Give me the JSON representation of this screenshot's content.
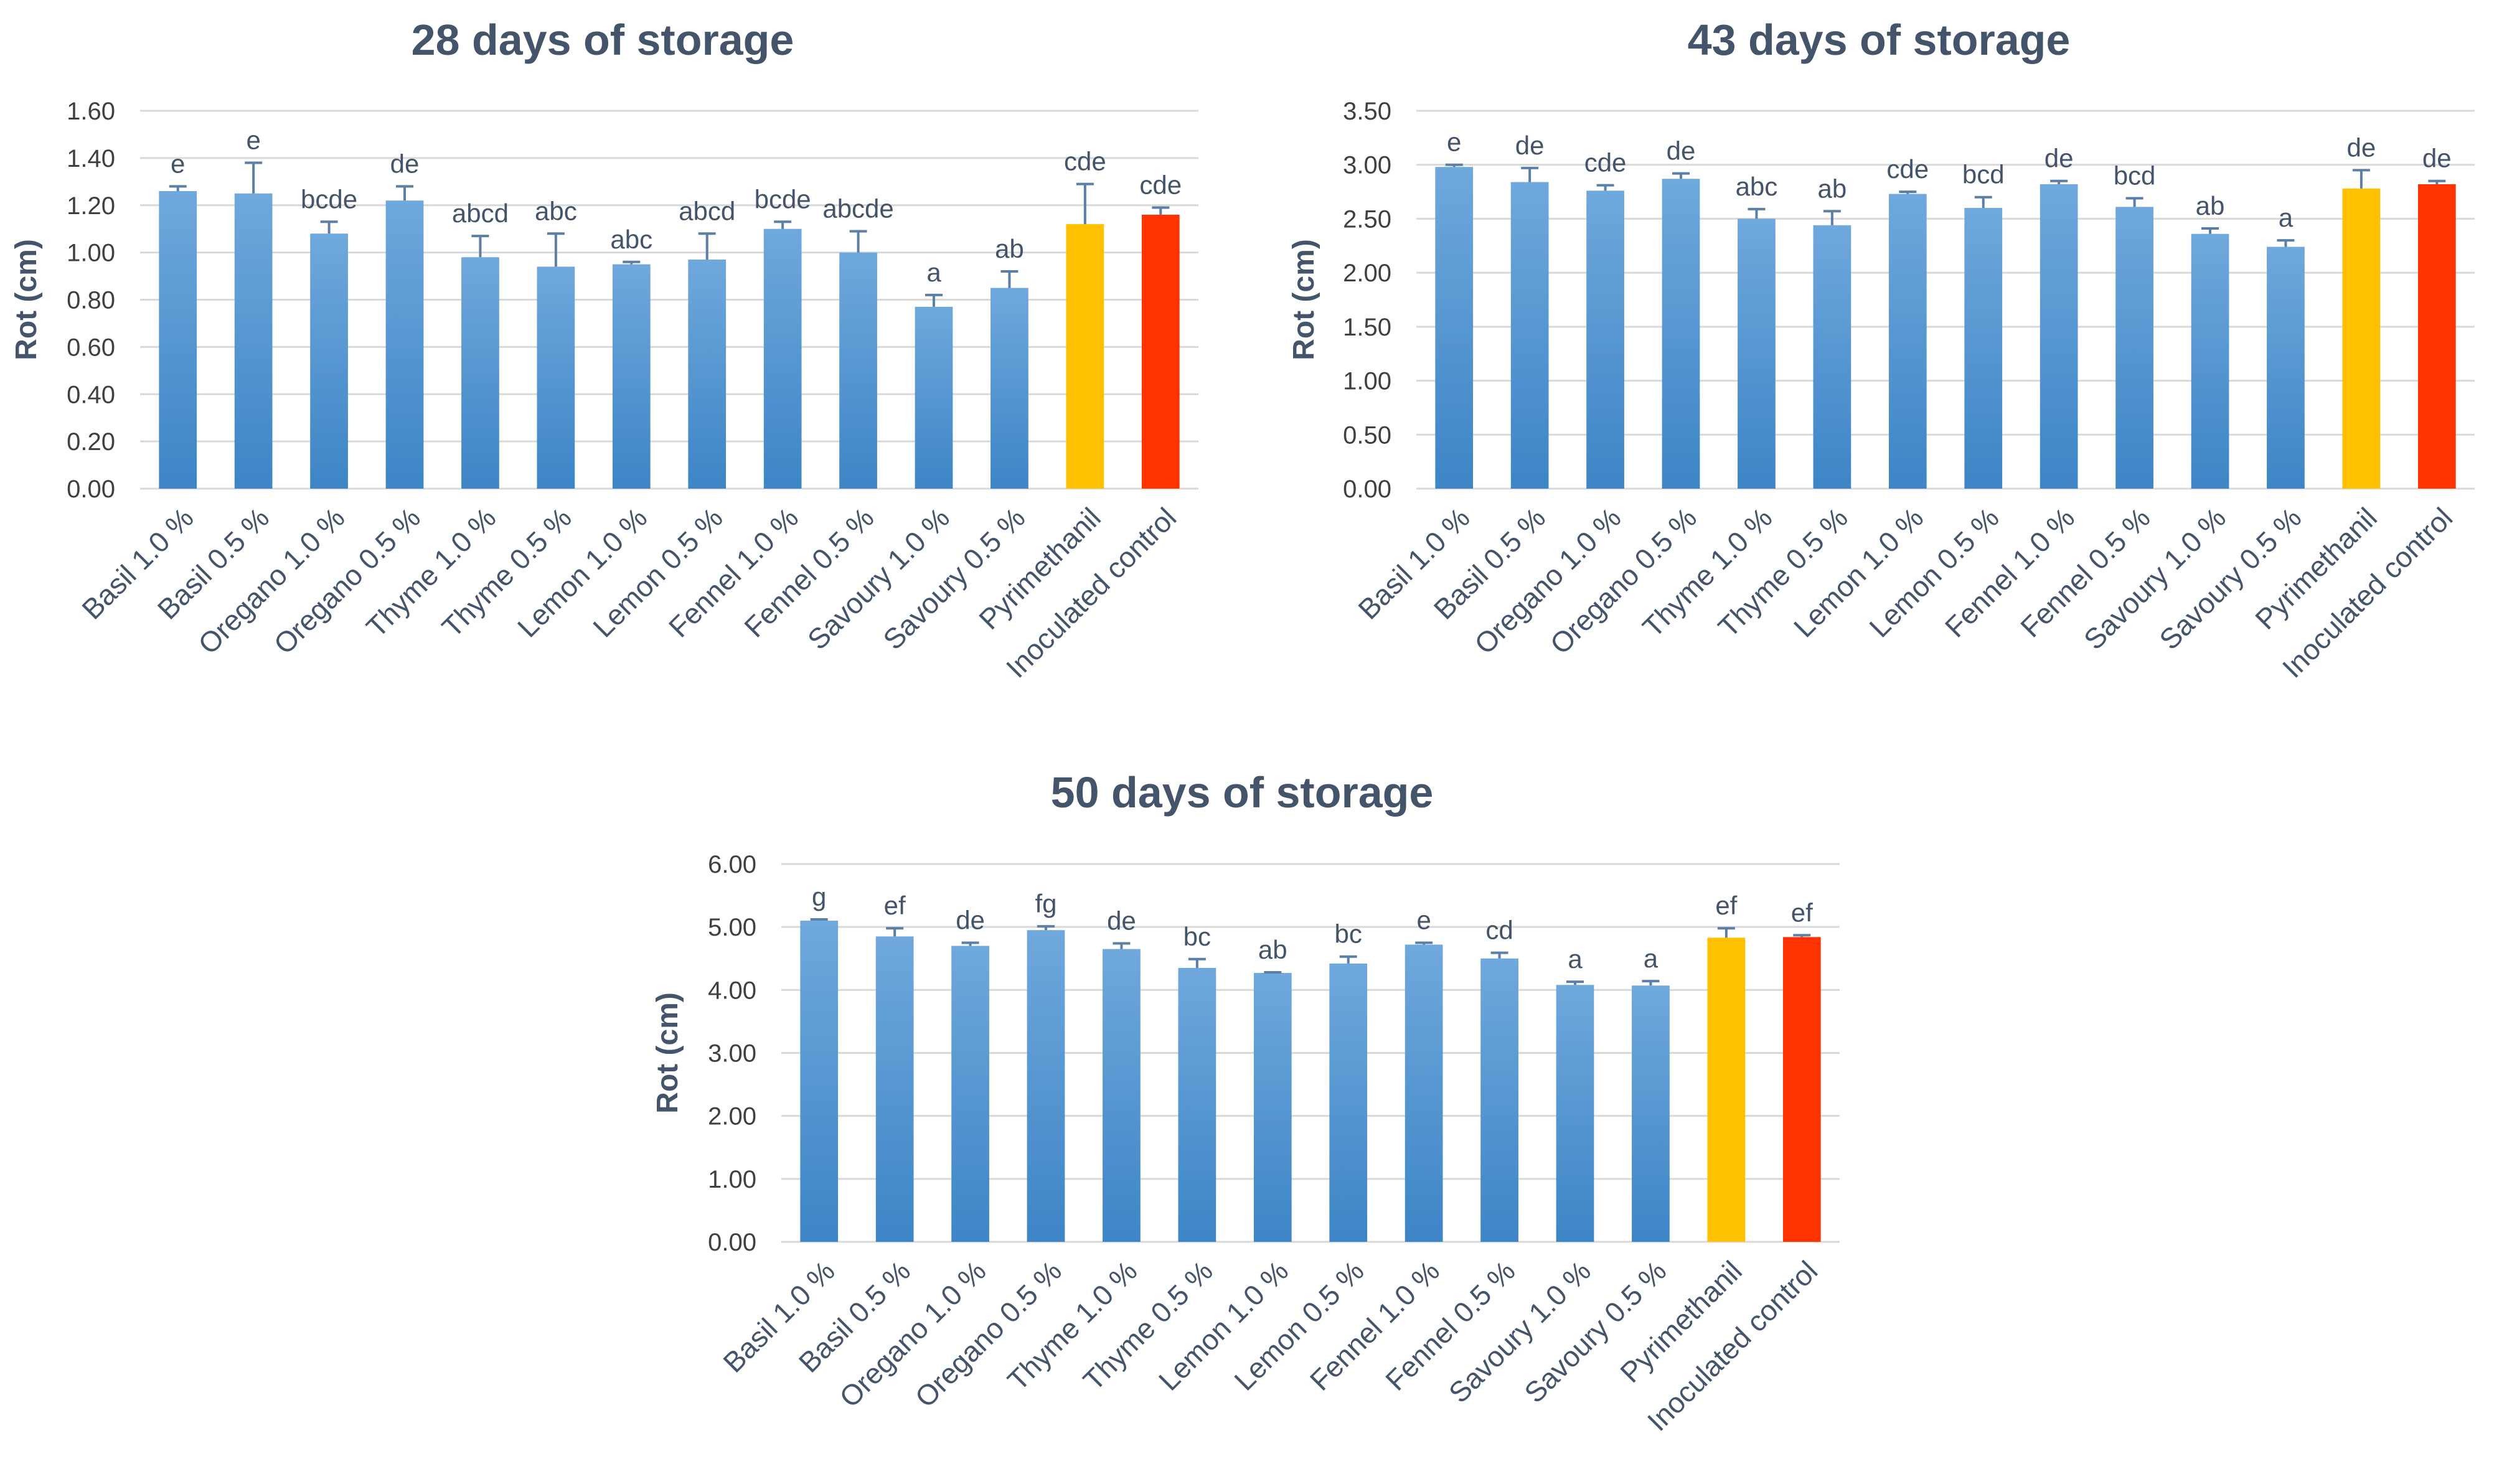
{
  "figure": {
    "colors": {
      "bar_top": "#6FA8DC",
      "bar_bottom": "#3D85C6",
      "pyrimethanil": "#FFC000",
      "control": "#FF3300",
      "text": "#44546A",
      "grid": "#D9D9D9"
    }
  },
  "chart_data": [
    {
      "type": "bar",
      "title": "28 days of storage",
      "ylabel": "Rot (cm)",
      "xlabel": "",
      "ylim": [
        0,
        1.6
      ],
      "yticks": [
        "0.00",
        "0.20",
        "0.40",
        "0.60",
        "0.80",
        "1.00",
        "1.20",
        "1.40",
        "1.60"
      ],
      "grid": true,
      "categories": [
        "Basil 1.0 %",
        "Basil 0.5 %",
        "Oregano 1.0 %",
        "Oregano 0.5 %",
        "Thyme 1.0 %",
        "Thyme 0.5 %",
        "Lemon 1.0 %",
        "Lemon 0.5 %",
        "Fennel 1.0 %",
        "Fennel 0.5 %",
        "Savoury 1.0 %",
        "Savoury 0.5 %",
        "Pyrimethanil",
        "Inoculated control"
      ],
      "values": [
        1.26,
        1.25,
        1.08,
        1.22,
        0.98,
        0.94,
        0.95,
        0.97,
        1.1,
        1.0,
        0.77,
        0.85,
        1.12,
        1.16
      ],
      "errors": [
        0.02,
        0.13,
        0.05,
        0.06,
        0.09,
        0.14,
        0.01,
        0.11,
        0.03,
        0.09,
        0.05,
        0.07,
        0.17,
        0.03
      ],
      "letters": [
        "e",
        "e",
        "bcde",
        "de",
        "abcd",
        "abc",
        "abc",
        "abcd",
        "bcde",
        "abcde",
        "a",
        "ab",
        "cde",
        "cde"
      ]
    },
    {
      "type": "bar",
      "title": "43 days of storage",
      "ylabel": "Rot (cm)",
      "xlabel": "",
      "ylim": [
        0,
        3.5
      ],
      "yticks": [
        "0.00",
        "0.50",
        "1.00",
        "1.50",
        "2.00",
        "2.50",
        "3.00",
        "3.50"
      ],
      "grid": true,
      "categories": [
        "Basil 1.0 %",
        "Basil 0.5 %",
        "Oregano 1.0 %",
        "Oregano 0.5 %",
        "Thyme 1.0 %",
        "Thyme 0.5 %",
        "Lemon 1.0 %",
        "Lemon 0.5 %",
        "Fennel 1.0 %",
        "Fennel 0.5 %",
        "Savoury 1.0 %",
        "Savoury 0.5 %",
        "Pyrimethanil",
        "Inoculated control"
      ],
      "values": [
        2.98,
        2.84,
        2.76,
        2.87,
        2.5,
        2.44,
        2.73,
        2.6,
        2.82,
        2.61,
        2.36,
        2.24,
        2.78,
        2.82
      ],
      "errors": [
        0.02,
        0.13,
        0.05,
        0.05,
        0.09,
        0.13,
        0.02,
        0.1,
        0.03,
        0.08,
        0.05,
        0.06,
        0.17,
        0.03
      ],
      "letters": [
        "e",
        "de",
        "cde",
        "de",
        "abc",
        "ab",
        "cde",
        "bcd",
        "de",
        "bcd",
        "ab",
        "a",
        "de",
        "de"
      ]
    },
    {
      "type": "bar",
      "title": "50 days of storage",
      "ylabel": "Rot (cm)",
      "xlabel": "",
      "ylim": [
        0,
        6
      ],
      "yticks": [
        "0.00",
        "1.00",
        "2.00",
        "3.00",
        "4.00",
        "5.00",
        "6.00"
      ],
      "grid": true,
      "categories": [
        "Basil 1.0 %",
        "Basil 0.5 %",
        "Oregano 1.0 %",
        "Oregano 0.5 %",
        "Thyme 1.0 %",
        "Thyme 0.5 %",
        "Lemon 1.0 %",
        "Lemon 0.5 %",
        "Fennel 1.0 %",
        "Fennel 0.5 %",
        "Savoury 1.0 %",
        "Savoury 0.5 %",
        "Pyrimethanil",
        "Inoculated control"
      ],
      "values": [
        5.1,
        4.85,
        4.7,
        4.95,
        4.65,
        4.35,
        4.27,
        4.42,
        4.72,
        4.5,
        4.08,
        4.07,
        4.83,
        4.84
      ],
      "errors": [
        0.02,
        0.13,
        0.05,
        0.06,
        0.09,
        0.14,
        0.01,
        0.11,
        0.03,
        0.09,
        0.05,
        0.07,
        0.15,
        0.03
      ],
      "letters": [
        "g",
        "ef",
        "de",
        "fg",
        "de",
        "bc",
        "ab",
        "bc",
        "e",
        "cd",
        "a",
        "a",
        "ef",
        "ef"
      ]
    }
  ]
}
